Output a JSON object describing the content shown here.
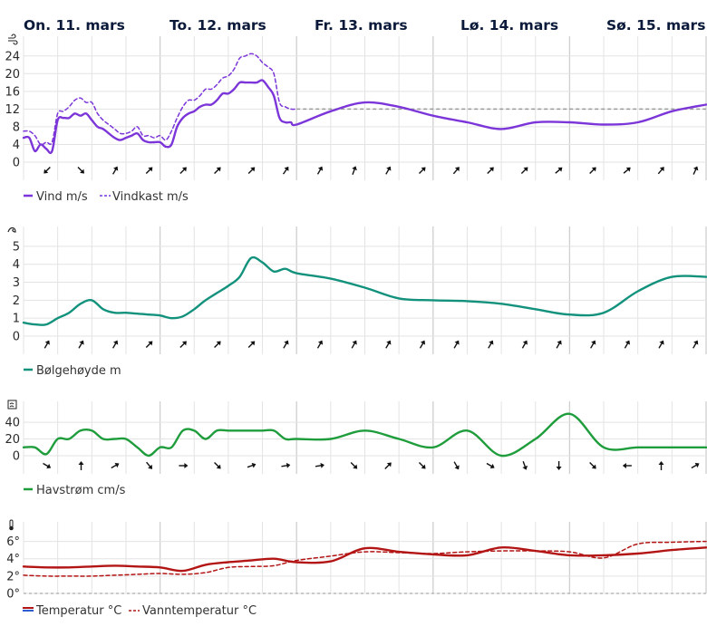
{
  "days": [
    "On. 11. mars",
    "To. 12. mars",
    "Fr. 13. mars",
    "Lø. 14. mars",
    "Sø. 15. mars"
  ],
  "colors": {
    "wind": "#7b35d8",
    "wave": "#12927c",
    "current": "#1f9d3c",
    "temp": "#b31515",
    "water": "#b31515",
    "reference": "#9a9a9a"
  },
  "icons": {
    "wind": "wind-icon",
    "wave": "wave-icon",
    "current": "current-icon",
    "temp": "thermometer-icon"
  },
  "chart_data": [
    {
      "type": "line",
      "name": "wind",
      "ylabel": "m/s",
      "ylim": [
        0,
        26
      ],
      "yticks": [
        "0",
        "4",
        "8",
        "12",
        "16",
        "20",
        "24"
      ],
      "x": [
        0,
        1,
        2,
        3,
        4,
        5,
        6,
        7,
        8,
        9,
        10,
        11,
        12,
        13,
        14,
        15,
        16,
        17,
        18,
        19,
        20,
        21,
        22,
        23,
        24,
        25,
        26,
        27,
        28,
        29,
        30,
        31,
        32,
        33,
        34,
        35,
        36,
        37,
        38,
        39,
        40,
        41,
        42,
        43,
        44,
        45,
        46,
        47,
        48,
        54,
        60,
        66,
        72,
        78,
        84,
        90,
        96,
        102,
        108,
        114,
        120
      ],
      "series": [
        {
          "name": "Vind m/s",
          "style": "solid",
          "values": [
            5.5,
            5.5,
            2.5,
            4,
            3,
            2.5,
            9.5,
            10,
            10,
            11,
            10.5,
            11,
            9.5,
            8,
            7.5,
            6.5,
            5.5,
            5,
            5.5,
            6,
            6.5,
            5,
            4.5,
            4.5,
            4.5,
            3.5,
            4,
            8,
            10,
            11,
            11.5,
            12.5,
            13,
            13,
            14,
            15.5,
            15.5,
            16.5,
            18,
            18,
            18,
            18,
            18.5,
            17,
            15,
            10,
            9,
            9,
            8.5,
            11.5,
            13.5,
            12.5,
            10.5,
            9,
            7.5,
            9,
            9,
            8.5,
            9,
            11.5,
            13
          ]
        },
        {
          "name": "Vindkast m/s",
          "style": "dashed",
          "values": [
            7,
            7,
            6,
            4,
            4.5,
            4.5,
            11,
            11.5,
            12.5,
            14,
            14.5,
            13.5,
            13.5,
            11,
            9.5,
            8.5,
            7.5,
            6.5,
            6.5,
            7,
            8,
            6,
            6,
            5.5,
            6,
            5,
            7,
            10,
            12.5,
            14,
            14,
            15,
            16.5,
            16.5,
            17.5,
            19,
            19.5,
            21,
            23.5,
            24,
            24.5,
            24,
            22.5,
            21.5,
            20,
            13.5,
            12.5,
            12,
            12,
            null,
            null,
            null,
            null,
            null,
            null,
            null,
            null,
            null,
            null,
            null,
            null
          ]
        }
      ],
      "reference": {
        "from": 48,
        "to": 120,
        "value": 12
      }
    },
    {
      "type": "line",
      "name": "waves",
      "ylabel": "m",
      "ylim": [
        0,
        5.5
      ],
      "yticks": [
        "0",
        "1",
        "2",
        "3",
        "4",
        "5"
      ],
      "x": [
        0,
        2,
        4,
        6,
        8,
        10,
        12,
        14,
        16,
        18,
        20,
        22,
        24,
        26,
        28,
        30,
        32,
        34,
        36,
        38,
        40,
        42,
        44,
        46,
        48,
        54,
        60,
        66,
        72,
        78,
        84,
        90,
        96,
        102,
        108,
        114,
        120
      ],
      "series": [
        {
          "name": "Bølgehøyde m",
          "style": "solid",
          "values": [
            0.75,
            0.65,
            0.65,
            1,
            1.3,
            1.8,
            2,
            1.5,
            1.3,
            1.3,
            1.25,
            1.2,
            1.15,
            1,
            1.1,
            1.5,
            2,
            2.4,
            2.8,
            3.3,
            4.35,
            4.1,
            3.6,
            3.75,
            3.5,
            3.2,
            2.7,
            2.1,
            2,
            1.95,
            1.8,
            1.5,
            1.2,
            1.3,
            2.5,
            3.3,
            3.3
          ]
        }
      ]
    },
    {
      "type": "line",
      "name": "current",
      "ylabel": "cm/s",
      "ylim": [
        0,
        52
      ],
      "yticks": [
        "0",
        "20",
        "40"
      ],
      "x": [
        0,
        2,
        4,
        6,
        8,
        10,
        12,
        14,
        16,
        18,
        20,
        22,
        24,
        26,
        28,
        30,
        32,
        34,
        36,
        38,
        40,
        42,
        44,
        46,
        48,
        54,
        60,
        66,
        72,
        78,
        84,
        90,
        96,
        102,
        108,
        114,
        120
      ],
      "series": [
        {
          "name": "Havstrøm cm/s",
          "style": "solid",
          "values": [
            10,
            10,
            2,
            20,
            20,
            30,
            30,
            20,
            20,
            20,
            10,
            0,
            10,
            10,
            30,
            30,
            20,
            30,
            30,
            30,
            30,
            30,
            30,
            20,
            20,
            20,
            30,
            20,
            10,
            30,
            0,
            20,
            50,
            10,
            10,
            10,
            10
          ]
        }
      ]
    },
    {
      "type": "line",
      "name": "temperature",
      "ylabel": "°C",
      "ylim": [
        0,
        7
      ],
      "yticks": [
        "0°",
        "2°",
        "4°",
        "6°"
      ],
      "x": [
        0,
        4,
        8,
        12,
        16,
        20,
        24,
        28,
        32,
        36,
        40,
        44,
        48,
        54,
        60,
        66,
        72,
        78,
        84,
        90,
        96,
        102,
        108,
        114,
        120
      ],
      "series": [
        {
          "name": "Temperatur °C",
          "style": "solid",
          "values": [
            3.1,
            3,
            3,
            3.1,
            3.2,
            3.1,
            3,
            2.6,
            3.3,
            3.6,
            3.8,
            4,
            3.6,
            3.7,
            5.2,
            4.8,
            4.5,
            4.4,
            5.3,
            4.9,
            4.4,
            4.4,
            4.6,
            5,
            5.3
          ]
        },
        {
          "name": "Vanntemperatur °C",
          "style": "dashed",
          "values": [
            2.1,
            2,
            2,
            2,
            2.1,
            2.2,
            2.3,
            2.2,
            2.4,
            3,
            3.1,
            3.2,
            3.8,
            4.3,
            4.8,
            4.7,
            4.6,
            4.8,
            4.9,
            4.9,
            4.8,
            4.1,
            5.7,
            5.9,
            6
          ]
        }
      ]
    }
  ],
  "wind_dirs": [
    225,
    135,
    30,
    45,
    45,
    45,
    45,
    35,
    30,
    20,
    30,
    45,
    40,
    45,
    45,
    50,
    45,
    50,
    40,
    25
  ],
  "wave_dirs": [
    30,
    30,
    30,
    45,
    45,
    45,
    45,
    30,
    30,
    30,
    30,
    30,
    30,
    30,
    30,
    30,
    30,
    30,
    30,
    30
  ],
  "current_dirs": [
    120,
    0,
    60,
    140,
    90,
    135,
    70,
    80,
    80,
    135,
    45,
    135,
    150,
    120,
    160,
    180,
    135,
    270,
    0,
    60
  ]
}
